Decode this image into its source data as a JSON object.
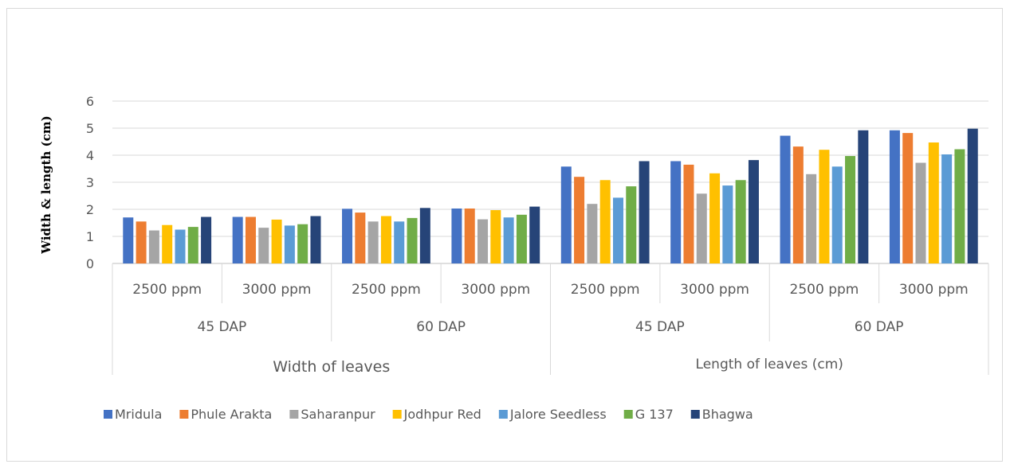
{
  "chart_data": {
    "type": "bar",
    "ylabel": "Width &  length (cm)",
    "ylim": [
      0,
      6
    ],
    "yticks": [
      0,
      1,
      2,
      3,
      4,
      5,
      6
    ],
    "grid": true,
    "legend_position": "bottom",
    "category_levels": {
      "top": [
        "Width of leaves",
        "Length of leaves (cm)"
      ],
      "mid": [
        "45 DAP",
        "60 DAP",
        "45 DAP",
        "60 DAP"
      ],
      "bottom": [
        "2500 ppm",
        "3000 ppm",
        "2500 ppm",
        "3000 ppm",
        "2500 ppm",
        "3000 ppm",
        "2500 ppm",
        "3000 ppm"
      ]
    },
    "series": [
      {
        "name": "Mridula",
        "color": "#4472C4",
        "values": [
          1.7,
          1.72,
          2.02,
          2.03,
          3.58,
          3.78,
          4.72,
          4.92
        ]
      },
      {
        "name": "Phule Arakta",
        "color": "#ED7D31",
        "values": [
          1.55,
          1.72,
          1.88,
          2.03,
          3.2,
          3.65,
          4.32,
          4.82
        ]
      },
      {
        "name": "Saharanpur",
        "color": "#A5A5A5",
        "values": [
          1.22,
          1.32,
          1.55,
          1.63,
          2.2,
          2.58,
          3.3,
          3.72
        ]
      },
      {
        "name": "Jodhpur Red",
        "color": "#FFC000",
        "values": [
          1.42,
          1.62,
          1.75,
          1.97,
          3.08,
          3.33,
          4.2,
          4.47
        ]
      },
      {
        "name": "Jalore Seedless",
        "color": "#5B9BD5",
        "values": [
          1.25,
          1.4,
          1.55,
          1.7,
          2.43,
          2.88,
          3.58,
          4.03
        ]
      },
      {
        "name": "G 137",
        "color": "#70AD47",
        "values": [
          1.35,
          1.45,
          1.68,
          1.8,
          2.85,
          3.08,
          3.97,
          4.22
        ]
      },
      {
        "name": "Bhagwa",
        "color": "#264478",
        "values": [
          1.72,
          1.75,
          2.05,
          2.1,
          3.78,
          3.82,
          4.92,
          4.98
        ]
      }
    ]
  }
}
